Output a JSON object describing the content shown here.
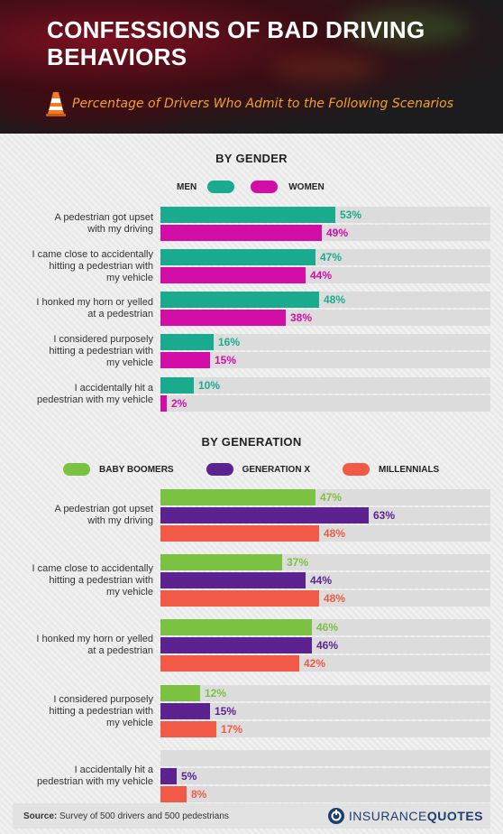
{
  "header": {
    "title": "Confessions of Bad Driving Behaviors",
    "subtitle": "Percentage of Drivers Who Admit to the Following Scenarios",
    "icon": "traffic-cone-icon"
  },
  "colors": {
    "men": "#1aab8f",
    "women": "#d20ea6",
    "baby_boomers": "#7cc242",
    "generation_x": "#5b2290",
    "millennials": "#f05a46",
    "subtitle": "#f5a02a"
  },
  "gender_section": {
    "title": "BY GENDER",
    "legend": [
      "MEN",
      "WOMEN"
    ]
  },
  "generation_section": {
    "title": "BY GENERATION",
    "legend": [
      "BABY BOOMERS",
      "GENERATION X",
      "MILLENNIALS"
    ]
  },
  "chart_data": [
    {
      "type": "bar",
      "title": "BY GENDER",
      "orientation": "horizontal",
      "unit": "%",
      "categories": [
        "A pedestrian got upset with my driving",
        "I came close to accidentally hitting a pedestrian with my vehicle",
        "I honked my horn or yelled at a pedestrian",
        "I considered purposely hitting a pedestrian with my vehicle",
        "I accidentally hit a pedestrian with my vehicle"
      ],
      "series": [
        {
          "name": "MEN",
          "values": [
            53,
            47,
            48,
            16,
            10
          ]
        },
        {
          "name": "WOMEN",
          "values": [
            49,
            44,
            38,
            15,
            2
          ]
        }
      ],
      "xlim": [
        0,
        100
      ],
      "legend_position": "top-center"
    },
    {
      "type": "bar",
      "title": "BY GENERATION",
      "orientation": "horizontal",
      "unit": "%",
      "categories": [
        "A pedestrian got upset with my driving",
        "I came close to accidentally hitting a pedestrian with my vehicle",
        "I honked my horn or yelled at a pedestrian",
        "I considered purposely hitting a pedestrian with my vehicle",
        "I accidentally hit a pedestrian with my vehicle"
      ],
      "series": [
        {
          "name": "BABY BOOMERS",
          "values": [
            47,
            37,
            46,
            12,
            null
          ]
        },
        {
          "name": "GENERATION X",
          "values": [
            63,
            44,
            46,
            15,
            5
          ]
        },
        {
          "name": "MILLENNIALS",
          "values": [
            48,
            48,
            42,
            17,
            8
          ]
        }
      ],
      "xlim": [
        0,
        100
      ],
      "legend_position": "top-center"
    }
  ],
  "footer": {
    "source_label": "Source:",
    "source_text": "Survey of 500 drivers and 500 pedestrians",
    "brand_part1": "INSURANCE",
    "brand_part2": "QUOTES"
  }
}
